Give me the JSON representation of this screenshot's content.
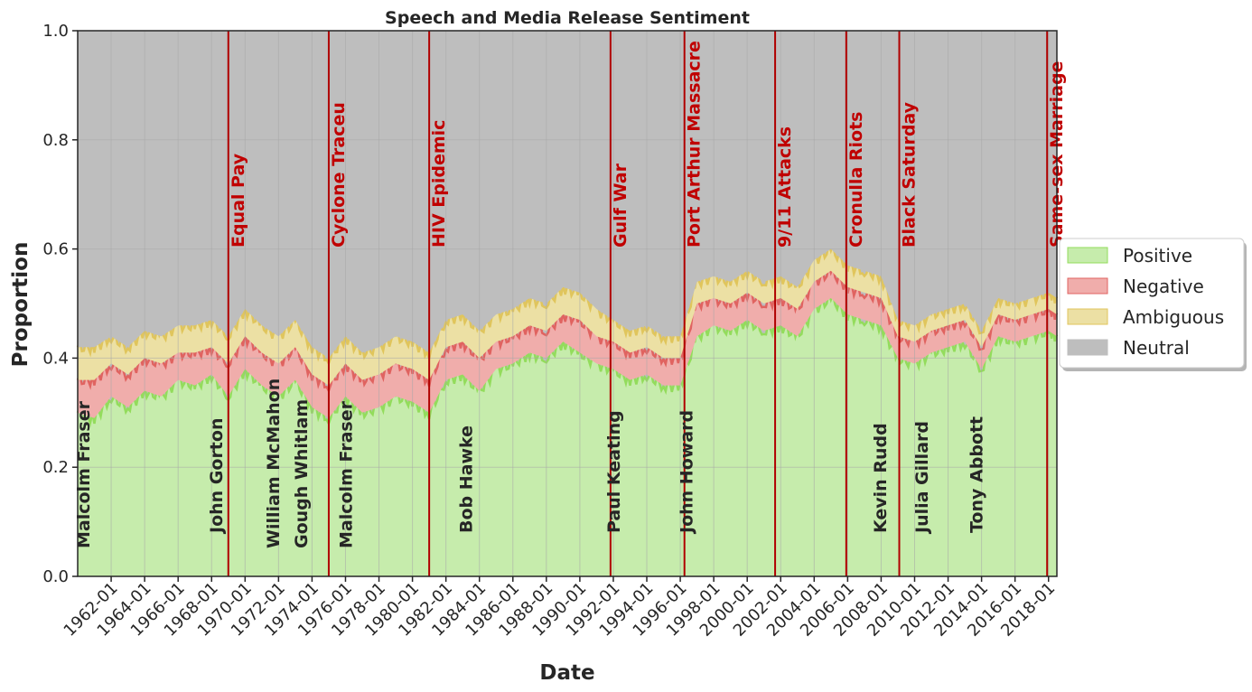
{
  "chart_data": {
    "type": "area",
    "stacked": true,
    "title": "Speech and Media Release Sentiment",
    "xlabel": "Date",
    "ylabel": "Proportion",
    "xlim": [
      "1960-01",
      "2018-07"
    ],
    "ylim": [
      0,
      1.0
    ],
    "yticks": [
      "0.0",
      "0.2",
      "0.4",
      "0.6",
      "0.8",
      "1.0"
    ],
    "xticks": [
      "1962-01",
      "1964-01",
      "1966-01",
      "1968-01",
      "1970-01",
      "1972-01",
      "1974-01",
      "1976-01",
      "1978-01",
      "1980-01",
      "1982-01",
      "1984-01",
      "1986-01",
      "1988-01",
      "1990-01",
      "1992-01",
      "1994-01",
      "1996-01",
      "1998-01",
      "2000-01",
      "2002-01",
      "2004-01",
      "2006-01",
      "2008-01",
      "2010-01",
      "2012-01",
      "2014-01",
      "2016-01",
      "2018-01"
    ],
    "grid": true,
    "legend_position": "right",
    "x": [
      "1960-01",
      "1961-01",
      "1962-01",
      "1963-01",
      "1964-01",
      "1965-01",
      "1966-01",
      "1967-01",
      "1968-01",
      "1969-01",
      "1970-01",
      "1971-01",
      "1972-01",
      "1973-01",
      "1974-01",
      "1975-01",
      "1976-01",
      "1977-01",
      "1978-01",
      "1979-01",
      "1980-01",
      "1981-01",
      "1982-01",
      "1983-01",
      "1984-01",
      "1985-01",
      "1986-01",
      "1987-01",
      "1988-01",
      "1989-01",
      "1990-01",
      "1991-01",
      "1992-01",
      "1993-01",
      "1994-01",
      "1995-01",
      "1996-01",
      "1997-01",
      "1998-01",
      "1999-01",
      "2000-01",
      "2001-01",
      "2002-01",
      "2003-01",
      "2004-01",
      "2005-01",
      "2006-01",
      "2007-01",
      "2008-01",
      "2009-01",
      "2010-01",
      "2011-01",
      "2012-01",
      "2013-01",
      "2014-01",
      "2015-01",
      "2016-01",
      "2017-01",
      "2018-01",
      "2018-07"
    ],
    "series": [
      {
        "name": "Positive",
        "color": "#c6ecac",
        "line_color": "#93dc5c",
        "values": [
          0.3,
          0.29,
          0.33,
          0.31,
          0.34,
          0.33,
          0.36,
          0.35,
          0.37,
          0.33,
          0.38,
          0.35,
          0.33,
          0.36,
          0.31,
          0.29,
          0.33,
          0.3,
          0.31,
          0.33,
          0.32,
          0.3,
          0.36,
          0.37,
          0.34,
          0.38,
          0.39,
          0.41,
          0.4,
          0.43,
          0.41,
          0.39,
          0.38,
          0.36,
          0.37,
          0.35,
          0.35,
          0.44,
          0.46,
          0.45,
          0.47,
          0.45,
          0.46,
          0.44,
          0.49,
          0.51,
          0.48,
          0.47,
          0.46,
          0.4,
          0.39,
          0.41,
          0.42,
          0.43,
          0.38,
          0.44,
          0.43,
          0.44,
          0.45,
          0.44
        ]
      },
      {
        "name": "Negative",
        "color": "#f0adab",
        "line_color": "#e06360",
        "values": [
          0.06,
          0.07,
          0.06,
          0.06,
          0.06,
          0.06,
          0.05,
          0.06,
          0.05,
          0.06,
          0.06,
          0.06,
          0.06,
          0.06,
          0.06,
          0.06,
          0.06,
          0.06,
          0.06,
          0.06,
          0.06,
          0.06,
          0.06,
          0.06,
          0.06,
          0.05,
          0.05,
          0.05,
          0.05,
          0.05,
          0.06,
          0.05,
          0.05,
          0.05,
          0.05,
          0.05,
          0.05,
          0.06,
          0.05,
          0.05,
          0.05,
          0.05,
          0.05,
          0.05,
          0.05,
          0.05,
          0.05,
          0.05,
          0.05,
          0.04,
          0.04,
          0.04,
          0.04,
          0.04,
          0.04,
          0.04,
          0.04,
          0.04,
          0.04,
          0.04
        ]
      },
      {
        "name": "Ambiguous",
        "color": "#ece0a4",
        "line_color": "#e0c55c",
        "values": [
          0.06,
          0.06,
          0.05,
          0.05,
          0.05,
          0.05,
          0.05,
          0.05,
          0.05,
          0.05,
          0.05,
          0.05,
          0.05,
          0.05,
          0.05,
          0.05,
          0.05,
          0.05,
          0.05,
          0.05,
          0.05,
          0.05,
          0.05,
          0.05,
          0.05,
          0.05,
          0.05,
          0.05,
          0.05,
          0.05,
          0.05,
          0.05,
          0.04,
          0.04,
          0.04,
          0.04,
          0.04,
          0.04,
          0.04,
          0.04,
          0.04,
          0.04,
          0.04,
          0.04,
          0.04,
          0.04,
          0.04,
          0.04,
          0.04,
          0.03,
          0.03,
          0.03,
          0.03,
          0.03,
          0.03,
          0.03,
          0.03,
          0.03,
          0.03,
          0.03
        ]
      },
      {
        "name": "Neutral",
        "color": "#bebebe",
        "line_color": "#bebebe",
        "values": [
          0.58,
          0.58,
          0.56,
          0.58,
          0.55,
          0.56,
          0.54,
          0.54,
          0.53,
          0.56,
          0.51,
          0.54,
          0.56,
          0.53,
          0.58,
          0.6,
          0.56,
          0.59,
          0.58,
          0.56,
          0.57,
          0.59,
          0.53,
          0.52,
          0.55,
          0.52,
          0.51,
          0.49,
          0.5,
          0.47,
          0.48,
          0.51,
          0.53,
          0.55,
          0.54,
          0.56,
          0.56,
          0.46,
          0.45,
          0.46,
          0.44,
          0.46,
          0.45,
          0.47,
          0.42,
          0.4,
          0.43,
          0.44,
          0.45,
          0.53,
          0.54,
          0.52,
          0.51,
          0.5,
          0.55,
          0.49,
          0.5,
          0.49,
          0.48,
          0.49
        ]
      }
    ],
    "events": [
      {
        "label": "Equal Pay",
        "date": "1969-01"
      },
      {
        "label": "Cyclone Traceu",
        "date": "1975-01"
      },
      {
        "label": "HIV Epidemic",
        "date": "1981-01"
      },
      {
        "label": "Gulf War",
        "date": "1991-11"
      },
      {
        "label": "Port Arthur Massacre",
        "date": "1996-04"
      },
      {
        "label": "9/11 Attacks",
        "date": "2001-09"
      },
      {
        "label": "Cronulla Riots",
        "date": "2005-12"
      },
      {
        "label": "Black Saturday",
        "date": "2009-02"
      },
      {
        "label": "Same-sex Marriage",
        "date": "2017-12"
      }
    ],
    "prime_ministers": [
      {
        "label": "Malcolm Fraser",
        "date": "1960-05"
      },
      {
        "label": "John Gorton",
        "date": "1968-04"
      },
      {
        "label": "William McMahon",
        "date": "1971-09"
      },
      {
        "label": "Gough Whitlam",
        "date": "1973-05"
      },
      {
        "label": "Malcolm Fraser",
        "date": "1976-01"
      },
      {
        "label": "Bob Hawke",
        "date": "1983-03"
      },
      {
        "label": "Paul Keating",
        "date": "1992-01"
      },
      {
        "label": "John Howard",
        "date": "1996-05"
      },
      {
        "label": "Kevin Rudd",
        "date": "2007-12"
      },
      {
        "label": "Julia Gillard",
        "date": "2010-06"
      },
      {
        "label": "Tony Abbott",
        "date": "2013-09"
      }
    ]
  }
}
